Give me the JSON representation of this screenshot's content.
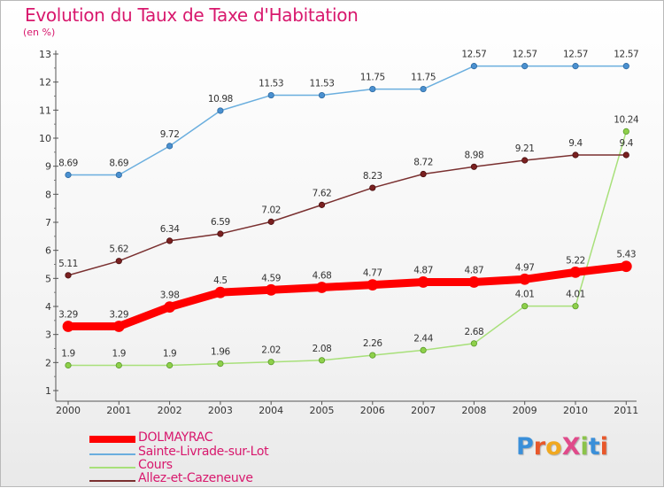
{
  "header": {
    "title": "Evolution du Taux de Taxe d'Habitation",
    "unit": "(en %)"
  },
  "brand": {
    "text": "ProXiti",
    "letters": [
      "P",
      "r",
      "o",
      "X",
      "i",
      "t",
      "i"
    ],
    "colors": [
      "#3a8fd9",
      "#e8572a",
      "#f0a820",
      "#e04a8a",
      "#8bc34a",
      "#3a8fd9",
      "#e8572a"
    ]
  },
  "chart_data": {
    "type": "line",
    "title": "Evolution du Taux de Taxe d'Habitation",
    "ylabel": "(en %)",
    "xlabel": "",
    "x": [
      "2000",
      "2001",
      "2002",
      "2003",
      "2004",
      "2005",
      "2006",
      "2007",
      "2008",
      "2009",
      "2010",
      "2011"
    ],
    "ylim": [
      1,
      13
    ],
    "yticks": [
      "1",
      "2",
      "3",
      "4",
      "5",
      "6",
      "7",
      "8",
      "9",
      "10",
      "11",
      "12",
      "13"
    ],
    "grid": false,
    "legend_position": "bottom-left",
    "series": [
      {
        "name": "DOLMAYRAC",
        "color": "#ff0000",
        "values": [
          3.29,
          3.29,
          3.98,
          4.5,
          4.59,
          4.68,
          4.77,
          4.87,
          4.87,
          4.97,
          5.22,
          5.43
        ],
        "labels": [
          "3.29",
          "3.29",
          "3.98",
          "4.5",
          "4.59",
          "4.68",
          "4.77",
          "4.87",
          "4.87",
          "4.97",
          "5.22",
          "5.43"
        ]
      },
      {
        "name": "Sainte-Livrade-sur-Lot",
        "color": "#6aaede",
        "values": [
          8.69,
          8.69,
          9.72,
          10.98,
          11.53,
          11.53,
          11.75,
          11.75,
          12.57,
          12.57,
          12.57,
          12.57
        ],
        "labels": [
          "8.69",
          "8.69",
          "9.72",
          "10.98",
          "11.53",
          "11.53",
          "11.75",
          "11.75",
          "12.57",
          "12.57",
          "12.57",
          "12.57"
        ]
      },
      {
        "name": "Cours",
        "color": "#a8e07a",
        "values": [
          1.9,
          1.9,
          1.9,
          1.96,
          2.02,
          2.08,
          2.26,
          2.44,
          2.68,
          4.01,
          4.01,
          10.24
        ],
        "labels": [
          "1.9",
          "1.9",
          "1.9",
          "1.96",
          "2.02",
          "2.08",
          "2.26",
          "2.44",
          "2.68",
          "4.01",
          "4.01",
          "10.24"
        ]
      },
      {
        "name": "Allez-et-Cazeneuve",
        "color": "#7a3030",
        "values": [
          5.11,
          5.62,
          6.34,
          6.59,
          7.02,
          7.62,
          8.23,
          8.72,
          8.98,
          9.21,
          9.4,
          9.4
        ],
        "labels": [
          "5.11",
          "5.62",
          "6.34",
          "6.59",
          "7.02",
          "7.62",
          "8.23",
          "8.72",
          "8.98",
          "9.21",
          "9.4",
          "9.4"
        ]
      }
    ]
  }
}
